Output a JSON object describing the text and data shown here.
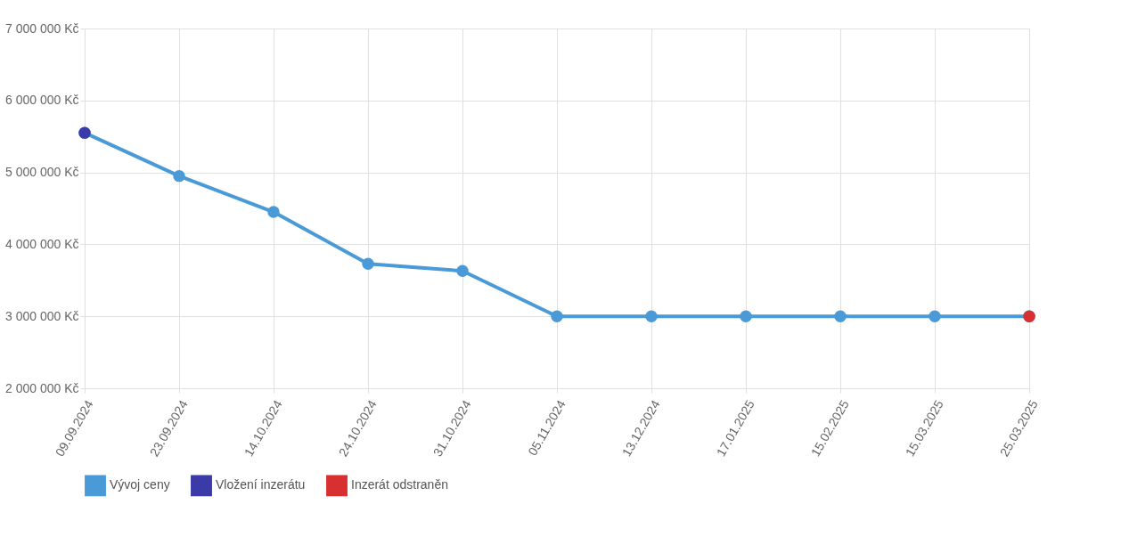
{
  "chart_data": {
    "type": "line",
    "categories": [
      "09.09.2024",
      "23.09.2024",
      "14.10.2024",
      "24.10.2024",
      "31.10.2024",
      "05.11.2024",
      "13.12.2024",
      "17.01.2025",
      "15.02.2025",
      "15.03.2025",
      "25.03.2025"
    ],
    "series": [
      {
        "name": "Vývoj ceny",
        "color": "#4a9ad8",
        "values": [
          5550000,
          4950000,
          4450000,
          3730000,
          3630000,
          3000000,
          3000000,
          3000000,
          3000000,
          3000000,
          3000000
        ]
      },
      {
        "name": "Vložení inzerátu",
        "color": "#3a3aa8",
        "type": "scatter",
        "values": [
          5550000,
          null,
          null,
          null,
          null,
          null,
          null,
          null,
          null,
          null,
          null
        ]
      },
      {
        "name": "Inzerát odstraněn",
        "color": "#d83030",
        "type": "scatter",
        "values": [
          null,
          null,
          null,
          null,
          null,
          null,
          null,
          null,
          null,
          null,
          3000000
        ]
      }
    ],
    "ylim": [
      2000000,
      7000000
    ],
    "yticks": [
      {
        "value": 2000000,
        "label": "2 000 000 Kč"
      },
      {
        "value": 3000000,
        "label": "3 000 000 Kč"
      },
      {
        "value": 4000000,
        "label": "4 000 000 Kč"
      },
      {
        "value": 5000000,
        "label": "5 000 000 Kč"
      },
      {
        "value": 6000000,
        "label": "6 000 000 Kč"
      },
      {
        "value": 7000000,
        "label": "7 000 000 Kč"
      }
    ],
    "grid": true,
    "legend": "bottom",
    "marker": "circle",
    "line_style": "solid"
  }
}
